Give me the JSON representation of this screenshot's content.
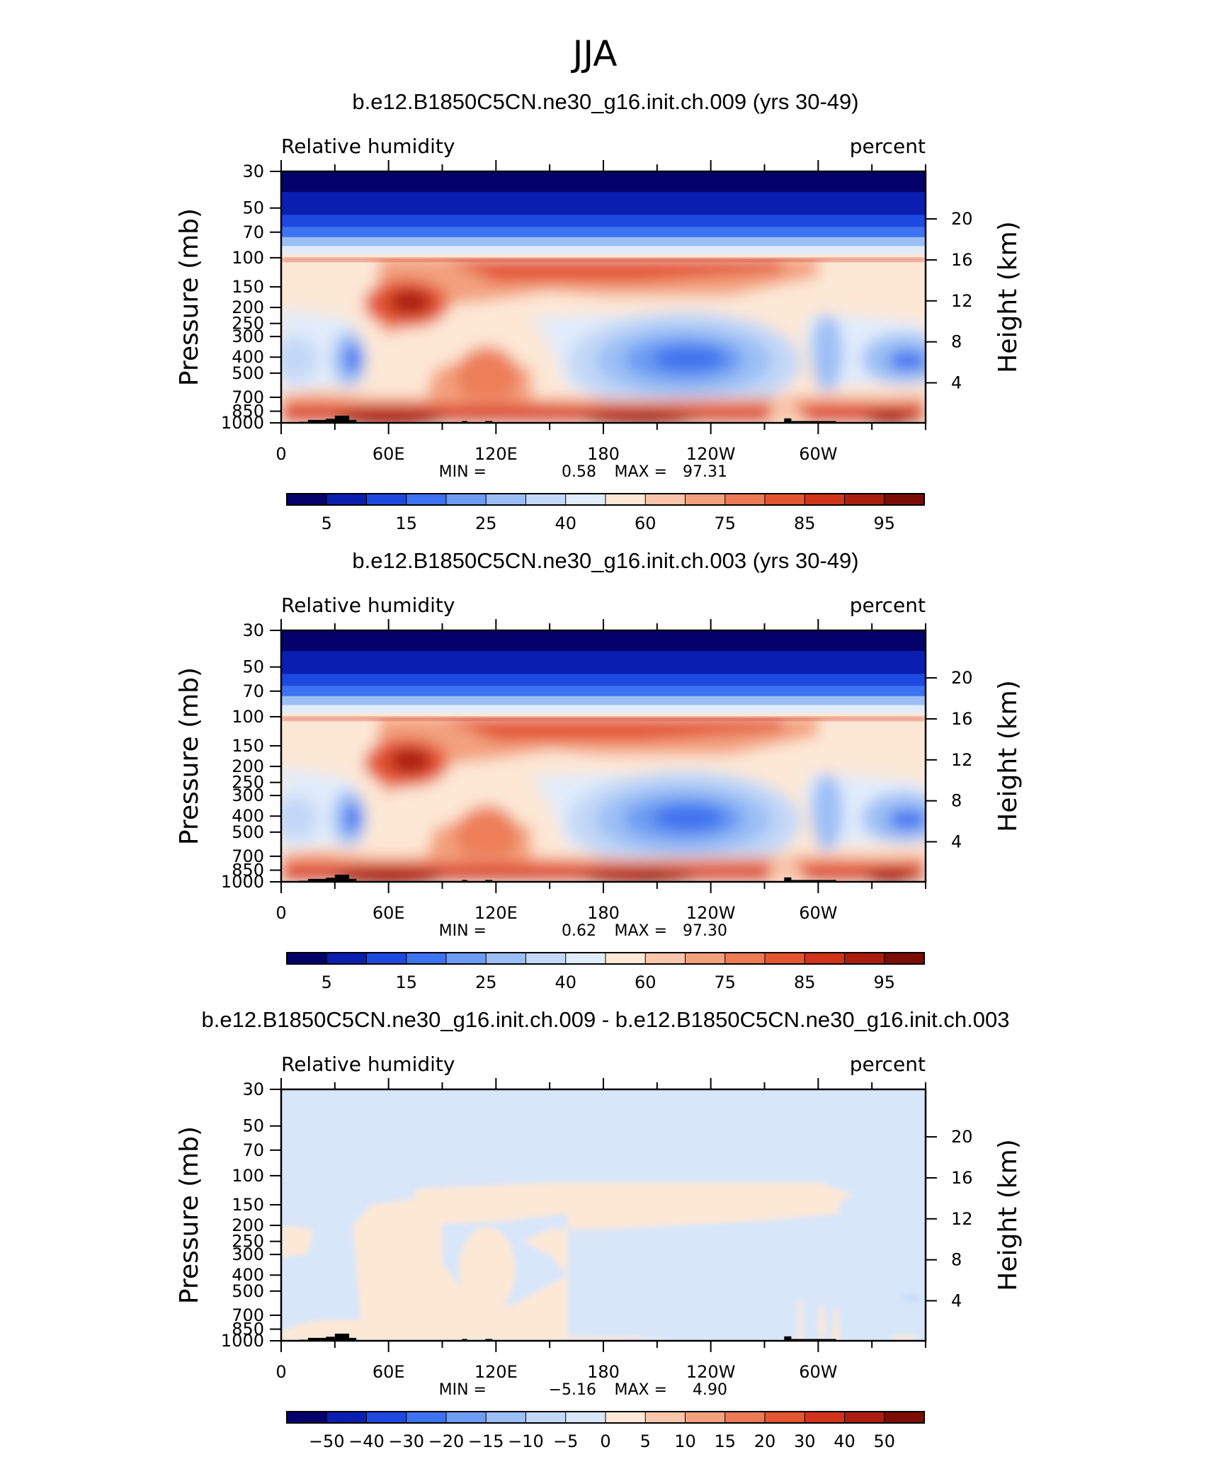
{
  "page": {
    "title": "JJA"
  },
  "panels": [
    {
      "title": "b.e12.B1850C5CN.ne30_g16.init.ch.009 (yrs 30-49)",
      "left_label": "Relative humidity",
      "right_label": "percent",
      "stats": {
        "min_label": "MIN =",
        "min_value": "0.58",
        "max_label": "MAX =",
        "max_value": "97.31"
      },
      "colorbar": {
        "labels": [
          "5",
          "15",
          "25",
          "40",
          "60",
          "75",
          "85",
          "95"
        ],
        "colors": [
          "#03026b",
          "#0a1fb0",
          "#1e49e0",
          "#3d72f0",
          "#6d9cf2",
          "#9bbff5",
          "#c3d8f7",
          "#e1ecfb",
          "#fde8d6",
          "#f9c6ab",
          "#f3a07d",
          "#ec7a55",
          "#e45532",
          "#d1331b",
          "#ab1d0f",
          "#7c0d05"
        ]
      },
      "kind": "rh"
    },
    {
      "title": "b.e12.B1850C5CN.ne30_g16.init.ch.003 (yrs 30-49)",
      "left_label": "Relative humidity",
      "right_label": "percent",
      "stats": {
        "min_label": "MIN =",
        "min_value": "0.62",
        "max_label": "MAX =",
        "max_value": "97.30"
      },
      "colorbar": {
        "labels": [
          "5",
          "15",
          "25",
          "40",
          "60",
          "75",
          "85",
          "95"
        ],
        "colors": [
          "#03026b",
          "#0a1fb0",
          "#1e49e0",
          "#3d72f0",
          "#6d9cf2",
          "#9bbff5",
          "#c3d8f7",
          "#e1ecfb",
          "#fde8d6",
          "#f9c6ab",
          "#f3a07d",
          "#ec7a55",
          "#e45532",
          "#d1331b",
          "#ab1d0f",
          "#7c0d05"
        ]
      },
      "kind": "rh"
    },
    {
      "title": "b.e12.B1850C5CN.ne30_g16.init.ch.009 - b.e12.B1850C5CN.ne30_g16.init.ch.003",
      "left_label": "Relative humidity",
      "right_label": "percent",
      "stats": {
        "min_label": "MIN =",
        "min_value": "−5.16",
        "max_label": "MAX =",
        "max_value": "4.90"
      },
      "colorbar": {
        "labels": [
          "−50",
          "−40",
          "−30",
          "−20",
          "−15",
          "−10",
          "−5",
          "0",
          "5",
          "10",
          "15",
          "20",
          "30",
          "40",
          "50"
        ],
        "colors": [
          "#03026b",
          "#0a1fb0",
          "#1e49e0",
          "#3d72f0",
          "#6d9cf2",
          "#9bbff5",
          "#c3d8f7",
          "#d7e6f9",
          "#fde8d6",
          "#f9c6ab",
          "#f3a07d",
          "#ec7a55",
          "#e45532",
          "#d1331b",
          "#ab1d0f",
          "#7c0d05"
        ]
      },
      "kind": "diff"
    }
  ],
  "chart_data": {
    "type": "heatmap",
    "x_ticks": [
      "0",
      "60E",
      "120E",
      "180",
      "120W",
      "60W"
    ],
    "pressure_ticks": [
      "30",
      "50",
      "70",
      "100",
      "150",
      "200",
      "250",
      "300",
      "400",
      "500",
      "700",
      "850",
      "1000"
    ],
    "height_ticks": [
      "20",
      "16",
      "12",
      "8",
      "4"
    ],
    "yaxis_left": "Pressure (mb)",
    "yaxis_right": "Height (km)"
  }
}
